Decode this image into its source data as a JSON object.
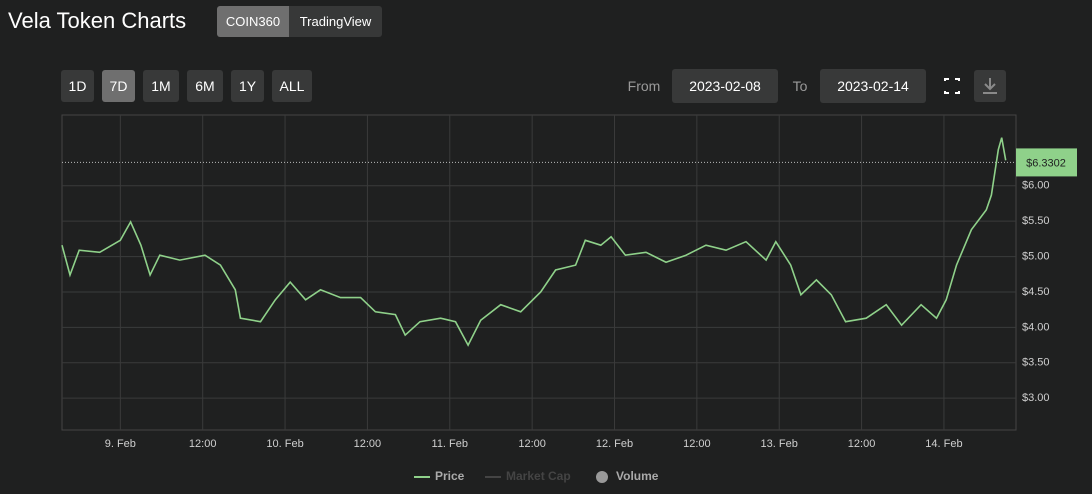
{
  "header": {
    "title": "Vela Token Charts",
    "sources": [
      "COIN360",
      "TradingView"
    ]
  },
  "controls": {
    "ranges": [
      "1D",
      "7D",
      "1M",
      "6M",
      "1Y",
      "ALL"
    ],
    "from_label": "From",
    "from": "2023-02-08",
    "to_label": "To",
    "to": "2023-02-14"
  },
  "chart_data": {
    "type": "line",
    "x": [
      "2023-02-08 15:30",
      "2023-02-08 16:40",
      "2023-02-08 18:00",
      "2023-02-08 21:00",
      "2023-02-09 00:00",
      "2023-02-09 01:30",
      "2023-02-09 03:00",
      "2023-02-09 04:20",
      "2023-02-09 05:45",
      "2023-02-09 08:40",
      "2023-02-09 12:20",
      "2023-02-09 14:35",
      "2023-02-09 16:45",
      "2023-02-09 17:30",
      "2023-02-09 20:25",
      "2023-02-09 22:35",
      "2023-02-10 00:45",
      "2023-02-10 03:00",
      "2023-02-10 05:10",
      "2023-02-10 08:05",
      "2023-02-10 11:00",
      "2023-02-10 13:10",
      "2023-02-10 16:05",
      "2023-02-10 17:30",
      "2023-02-10 19:40",
      "2023-02-10 22:40",
      "2023-02-11 00:50",
      "2023-02-11 02:40",
      "2023-02-11 04:30",
      "2023-02-11 07:25",
      "2023-02-11 10:20",
      "2023-02-11 13:15",
      "2023-02-11 15:25",
      "2023-02-11 18:20",
      "2023-02-11 19:45",
      "2023-02-11 22:00",
      "2023-02-11 23:30",
      "2023-02-12 01:35",
      "2023-02-12 04:35",
      "2023-02-12 07:30",
      "2023-02-12 10:25",
      "2023-02-12 13:20",
      "2023-02-12 16:15",
      "2023-02-12 19:10",
      "2023-02-12 22:05",
      "2023-02-12 23:30",
      "2023-02-13 01:40",
      "2023-02-13 03:10",
      "2023-02-13 05:25",
      "2023-02-13 07:35",
      "2023-02-13 09:40",
      "2023-02-13 12:40",
      "2023-02-13 15:35",
      "2023-02-13 17:50",
      "2023-02-13 20:40",
      "2023-02-13 22:55",
      "2023-02-14 00:20",
      "2023-02-14 01:50",
      "2023-02-14 04:00",
      "2023-02-14 06:10",
      "2023-02-14 06:55",
      "2023-02-14 07:55",
      "2023-02-14 08:25",
      "2023-02-14 09:00"
    ],
    "series": [
      {
        "name": "Price",
        "color": "#8fd18a",
        "values": [
          5.16,
          4.74,
          5.09,
          5.06,
          5.23,
          5.49,
          5.16,
          4.74,
          5.02,
          4.95,
          5.02,
          4.88,
          4.53,
          4.13,
          4.08,
          4.39,
          4.64,
          4.39,
          4.53,
          4.42,
          4.42,
          4.22,
          4.18,
          3.89,
          4.08,
          4.13,
          4.08,
          3.75,
          4.1,
          4.32,
          4.22,
          4.5,
          4.81,
          4.88,
          5.23,
          5.16,
          5.28,
          5.02,
          5.06,
          4.92,
          5.02,
          5.16,
          5.09,
          5.21,
          4.95,
          5.21,
          4.88,
          4.46,
          4.67,
          4.46,
          4.08,
          4.13,
          4.32,
          4.03,
          4.32,
          4.13,
          4.39,
          4.88,
          5.38,
          5.66,
          5.87,
          6.51,
          6.68,
          6.36
        ]
      }
    ],
    "legend_extra": [
      "Market Cap",
      "Volume"
    ],
    "current_price": {
      "value": 6.3302,
      "label": "$6.3302"
    },
    "xlim": [
      "2023-02-08 15:30",
      "2023-02-14 10:30"
    ],
    "xticks": [
      {
        "value": "2023-02-09 00:00",
        "label": "9. Feb"
      },
      {
        "value": "2023-02-09 12:00",
        "label": "12:00"
      },
      {
        "value": "2023-02-10 00:00",
        "label": "10. Feb"
      },
      {
        "value": "2023-02-10 12:00",
        "label": "12:00"
      },
      {
        "value": "2023-02-11 00:00",
        "label": "11. Feb"
      },
      {
        "value": "2023-02-11 12:00",
        "label": "12:00"
      },
      {
        "value": "2023-02-12 00:00",
        "label": "12. Feb"
      },
      {
        "value": "2023-02-12 12:00",
        "label": "12:00"
      },
      {
        "value": "2023-02-13 00:00",
        "label": "13. Feb"
      },
      {
        "value": "2023-02-13 12:00",
        "label": "12:00"
      },
      {
        "value": "2023-02-14 00:00",
        "label": "14. Feb"
      }
    ],
    "ylim": [
      2.55,
      7
    ],
    "yticks": [
      {
        "value": 3,
        "label": "$3.00"
      },
      {
        "value": 3.5,
        "label": "$3.50"
      },
      {
        "value": 4,
        "label": "$4.00"
      },
      {
        "value": 4.5,
        "label": "$4.50"
      },
      {
        "value": 5,
        "label": "$5.00"
      },
      {
        "value": 5.5,
        "label": "$5.50"
      },
      {
        "value": 6,
        "label": "$6.00"
      }
    ],
    "grid": true
  }
}
